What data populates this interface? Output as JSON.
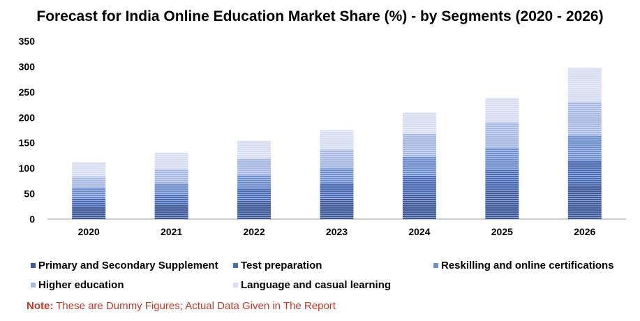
{
  "chart_data": {
    "type": "bar",
    "stacked": true,
    "title": "Forecast for India Online Education Market Share (%) - by Segments (2020 - 2026)",
    "categories": [
      "2020",
      "2021",
      "2022",
      "2023",
      "2024",
      "2025",
      "2026"
    ],
    "series": [
      {
        "name": "Primary and Secondary Supplement",
        "color": "#3f5a9a",
        "values": [
          25,
          28,
          35,
          40,
          48,
          55,
          65
        ]
      },
      {
        "name": "Test preparation",
        "color": "#4a6bb5",
        "values": [
          17,
          20,
          25,
          30,
          38,
          42,
          50
        ]
      },
      {
        "name": "Reskilling and online certifications",
        "color": "#6f8fcf",
        "values": [
          20,
          22,
          27,
          30,
          37,
          43,
          50
        ]
      },
      {
        "name": "Higher education",
        "color": "#a7b9e3",
        "values": [
          22,
          28,
          32,
          37,
          45,
          50,
          65
        ]
      },
      {
        "name": "Language and casual learning",
        "color": "#d7def2",
        "values": [
          28,
          33,
          35,
          38,
          42,
          48,
          68
        ]
      }
    ],
    "ylim": [
      0,
      350
    ],
    "yticks": [
      "0",
      "50",
      "100",
      "150",
      "200",
      "250",
      "300",
      "350"
    ],
    "xlabel": "",
    "ylabel": "",
    "legend": "bottom",
    "grid": false
  },
  "note": {
    "label": "Note:",
    "text": " These are Dummy Figures; Actual Data Given in The Report"
  }
}
